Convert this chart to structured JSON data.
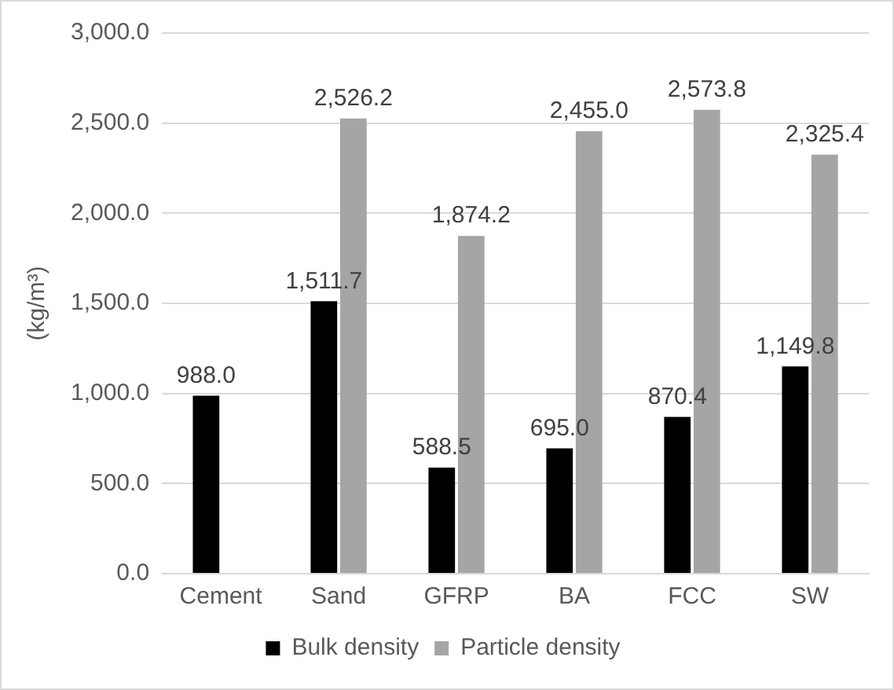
{
  "chart_data": {
    "type": "bar",
    "ylabel": "(kg/m³)",
    "categories": [
      "Cement",
      "Sand",
      "GFRP",
      "BA",
      "FCC",
      "SW"
    ],
    "series": [
      {
        "name": "Bulk density",
        "color": "#000000",
        "values": [
          988.0,
          1511.7,
          588.5,
          695.0,
          870.4,
          1149.8
        ],
        "value_labels": [
          "988.0",
          "1,511.7",
          "588.5",
          "695.0",
          "870.4",
          "1,149.8"
        ]
      },
      {
        "name": "Particle density",
        "color": "#a5a5a5",
        "values": [
          null,
          2526.2,
          1874.2,
          2455.0,
          2573.8,
          2325.4
        ],
        "value_labels": [
          null,
          "2,526.2",
          "1,874.2",
          "2,455.0",
          "2,573.8",
          "2,325.4"
        ]
      }
    ],
    "ylim": [
      0,
      3000
    ],
    "yticks": [
      {
        "value": 0,
        "label": "0.0"
      },
      {
        "value": 500,
        "label": "500.0"
      },
      {
        "value": 1000,
        "label": "1,000.0"
      },
      {
        "value": 1500,
        "label": "1,500.0"
      },
      {
        "value": 2000,
        "label": "2,000.0"
      },
      {
        "value": 2500,
        "label": "2,500.0"
      },
      {
        "value": 3000,
        "label": "3,000.0"
      }
    ],
    "grid": "y",
    "legend": "bottom"
  }
}
